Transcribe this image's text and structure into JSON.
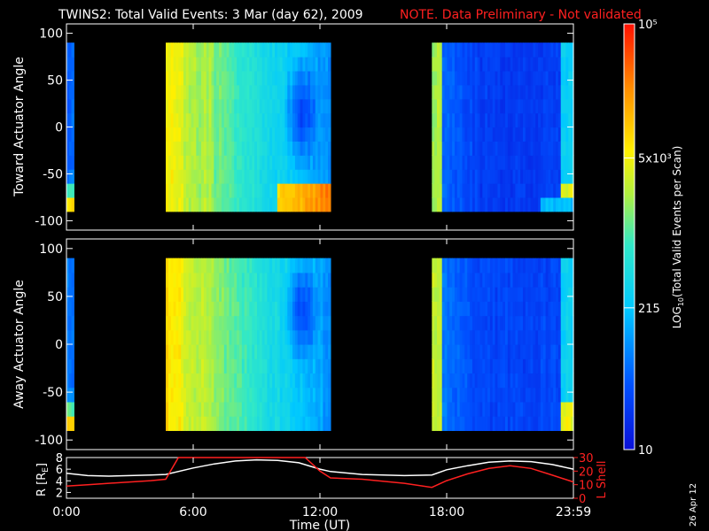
{
  "title": "TWINS2: Total Valid Events:  3 Mar (day  62), 2009",
  "note": "NOTE. Data Preliminary - Not validated",
  "stamp": "26 Apr 12",
  "colorbar": {
    "label_main": "LOG",
    "label_sub": "10",
    "label_rest": "(Total Valid  Events per Scan)",
    "ticks": [
      {
        "label": "10",
        "frac": 0.0
      },
      {
        "label": "215",
        "frac": 0.333
      },
      {
        "label": "5x10³",
        "frac": 0.685
      },
      {
        "label": "10⁵",
        "frac": 1.0
      }
    ],
    "scale": "log"
  },
  "chart_data": [
    {
      "type": "heatmap",
      "ylabel": "Toward Actuator Angle",
      "ylim": [
        -110,
        110
      ],
      "yticks": [
        "100",
        "50",
        "0",
        "-50",
        "-100"
      ],
      "xlim_hours": [
        0,
        24
      ],
      "data_hours": [
        [
          0.0,
          0.35
        ],
        [
          4.7,
          12.5
        ],
        [
          17.3,
          24.0
        ]
      ],
      "colorscale": "rainbow-log"
    },
    {
      "type": "heatmap",
      "ylabel": "Away Actuator Angle",
      "ylim": [
        -110,
        110
      ],
      "yticks": [
        "100",
        "50",
        "0",
        "-50",
        "-100"
      ],
      "xlim_hours": [
        0,
        24
      ],
      "data_hours": [
        [
          0.0,
          0.35
        ],
        [
          4.7,
          12.5
        ],
        [
          17.3,
          24.0
        ]
      ],
      "colorscale": "rainbow-log"
    },
    {
      "type": "line",
      "xlabel": "Time (UT)",
      "xticks": [
        "0:00",
        "6:00",
        "12:00",
        "18:00",
        "23:59"
      ],
      "left_axis": {
        "label_main": "R [R",
        "label_sub": "E",
        "label_end": "]",
        "ticks": [
          "8",
          "6",
          "4",
          "2"
        ],
        "ylim": [
          1,
          8
        ]
      },
      "right_axis": {
        "label": "L Shell",
        "ticks": [
          "30",
          "20",
          "10",
          "0"
        ],
        "ylim": [
          0,
          30
        ]
      },
      "series": [
        {
          "axis": "R",
          "color": "#ffffff",
          "x": [
            0,
            1,
            2,
            3,
            4,
            4.7,
            6,
            7,
            8,
            9,
            10,
            11,
            12,
            12.5,
            14,
            16,
            17.3,
            18,
            19,
            20,
            21,
            22,
            23,
            24
          ],
          "y": [
            5.3,
            4.9,
            4.8,
            4.9,
            5.0,
            5.1,
            6.2,
            6.9,
            7.4,
            7.6,
            7.5,
            7.1,
            6.0,
            5.6,
            5.1,
            4.9,
            5.0,
            5.9,
            6.6,
            7.2,
            7.4,
            7.3,
            6.8,
            6.0
          ]
        },
        {
          "axis": "L",
          "color": "#ff2020",
          "x": [
            0,
            1,
            2,
            3,
            4,
            4.7,
            5.3,
            11.3,
            12.0,
            12.5,
            14,
            16,
            17.3,
            18,
            19,
            20,
            21,
            22,
            23,
            24
          ],
          "y": [
            9,
            10,
            11,
            12,
            13,
            14,
            30,
            30,
            20,
            15,
            14,
            11,
            8,
            13,
            18,
            22,
            24,
            22,
            17,
            12
          ]
        }
      ]
    }
  ]
}
